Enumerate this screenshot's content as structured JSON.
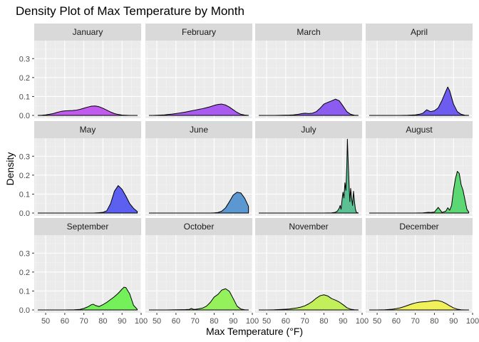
{
  "chart_data": {
    "type": "area",
    "title": "Density Plot of Max Temperature by Month",
    "xlabel": "Max Temperature (°F)",
    "ylabel": "Density",
    "xlim": [
      44,
      100
    ],
    "ylim": [
      -0.015,
      0.395
    ],
    "x_ticks": [
      50,
      60,
      70,
      80,
      90,
      100
    ],
    "y_ticks": [
      0.0,
      0.1,
      0.2,
      0.3
    ],
    "y_tick_labels": [
      "0.0",
      "0.1",
      "0.2",
      "0.3"
    ],
    "grid": true,
    "panels": [
      {
        "name": "January",
        "fill": "#C15BF0",
        "x": [
          46,
          48,
          50,
          52,
          54,
          56,
          58,
          60,
          62,
          64,
          66,
          68,
          70,
          72,
          74,
          76,
          78,
          80,
          82,
          84,
          86,
          88,
          90,
          92,
          94,
          96,
          98
        ],
        "y": [
          0.0,
          0.001,
          0.003,
          0.006,
          0.01,
          0.016,
          0.021,
          0.024,
          0.025,
          0.026,
          0.028,
          0.032,
          0.038,
          0.044,
          0.049,
          0.05,
          0.046,
          0.038,
          0.028,
          0.018,
          0.01,
          0.005,
          0.002,
          0.001,
          0.0,
          0.0,
          0.0
        ]
      },
      {
        "name": "February",
        "fill": "#A95BF0",
        "x": [
          46,
          48,
          50,
          52,
          54,
          56,
          58,
          60,
          62,
          64,
          66,
          68,
          70,
          72,
          74,
          76,
          78,
          80,
          82,
          84,
          86,
          88,
          90,
          92,
          94,
          96,
          98
        ],
        "y": [
          0.0,
          0.0,
          0.001,
          0.002,
          0.003,
          0.005,
          0.007,
          0.01,
          0.013,
          0.016,
          0.02,
          0.024,
          0.028,
          0.032,
          0.036,
          0.041,
          0.046,
          0.053,
          0.058,
          0.06,
          0.055,
          0.044,
          0.03,
          0.016,
          0.006,
          0.002,
          0.0
        ]
      },
      {
        "name": "March",
        "fill": "#8C5BF0",
        "x": [
          46,
          50,
          54,
          58,
          62,
          64,
          66,
          68,
          70,
          72,
          74,
          76,
          78,
          80,
          82,
          84,
          86,
          88,
          90,
          92,
          94,
          96,
          98
        ],
        "y": [
          0.0,
          0.0,
          0.0,
          0.001,
          0.002,
          0.003,
          0.005,
          0.009,
          0.012,
          0.01,
          0.012,
          0.02,
          0.038,
          0.06,
          0.069,
          0.077,
          0.086,
          0.078,
          0.05,
          0.02,
          0.006,
          0.001,
          0.0
        ]
      },
      {
        "name": "April",
        "fill": "#6E5BF0",
        "x": [
          46,
          50,
          54,
          58,
          62,
          66,
          70,
          72,
          74,
          76,
          78,
          80,
          82,
          84,
          86,
          87,
          88,
          90,
          92,
          94,
          96,
          98
        ],
        "y": [
          0.0,
          0.0,
          0.0,
          0.0,
          0.0,
          0.001,
          0.003,
          0.006,
          0.012,
          0.03,
          0.02,
          0.025,
          0.04,
          0.08,
          0.128,
          0.15,
          0.13,
          0.06,
          0.02,
          0.006,
          0.001,
          0.0
        ]
      },
      {
        "name": "May",
        "fill": "#5B60F0",
        "x": [
          46,
          50,
          55,
          60,
          65,
          70,
          75,
          78,
          80,
          82,
          84,
          86,
          88,
          90,
          92,
          94,
          96,
          98
        ],
        "y": [
          0.0,
          0.0,
          0.0,
          0.0,
          0.0,
          0.0,
          0.0,
          0.002,
          0.004,
          0.012,
          0.05,
          0.115,
          0.145,
          0.125,
          0.09,
          0.05,
          0.025,
          0.008
        ]
      },
      {
        "name": "June",
        "fill": "#5B97D0",
        "x": [
          46,
          50,
          55,
          60,
          65,
          70,
          75,
          78,
          80,
          82,
          84,
          86,
          88,
          90,
          92,
          94,
          96,
          98
        ],
        "y": [
          0.0,
          0.0,
          0.0,
          0.0,
          0.0,
          0.0,
          0.0,
          0.0,
          0.001,
          0.003,
          0.01,
          0.028,
          0.06,
          0.095,
          0.11,
          0.106,
          0.078,
          0.035
        ]
      },
      {
        "name": "July",
        "fill": "#5BC094",
        "x": [
          46,
          60,
          80,
          84,
          86,
          87,
          88,
          88.5,
          89,
          89.5,
          90,
          90.5,
          91,
          91.5,
          92,
          92.3,
          92.6,
          93,
          93.3,
          93.6,
          94,
          94.5,
          95,
          95.5,
          96,
          96.5,
          97,
          98
        ],
        "y": [
          0.0,
          0.0,
          0.0,
          0.001,
          0.004,
          0.01,
          0.025,
          0.04,
          0.02,
          0.07,
          0.11,
          0.08,
          0.16,
          0.12,
          0.25,
          0.39,
          0.3,
          0.2,
          0.12,
          0.06,
          0.13,
          0.08,
          0.04,
          0.115,
          0.06,
          0.02,
          0.004,
          0.0
        ]
      },
      {
        "name": "August",
        "fill": "#5BD874",
        "x": [
          46,
          60,
          70,
          74,
          76,
          77,
          78,
          80,
          82,
          84,
          86,
          87,
          88,
          89,
          90,
          91,
          92,
          93,
          94,
          95,
          96,
          97,
          98
        ],
        "y": [
          0.0,
          0.0,
          0.0,
          0.001,
          0.003,
          0.004,
          0.003,
          0.005,
          0.03,
          0.003,
          0.01,
          0.028,
          0.015,
          0.04,
          0.12,
          0.18,
          0.22,
          0.21,
          0.15,
          0.12,
          0.07,
          0.02,
          0.005
        ]
      },
      {
        "name": "September",
        "fill": "#74F05B",
        "x": [
          46,
          50,
          55,
          60,
          65,
          68,
          70,
          72,
          74,
          75,
          76,
          78,
          80,
          82,
          84,
          86,
          88,
          90,
          91,
          92,
          94,
          96,
          98
        ],
        "y": [
          0.0,
          0.0,
          0.0,
          0.0,
          0.001,
          0.003,
          0.008,
          0.016,
          0.028,
          0.03,
          0.024,
          0.018,
          0.028,
          0.04,
          0.055,
          0.07,
          0.088,
          0.11,
          0.12,
          0.118,
          0.085,
          0.025,
          0.003
        ]
      },
      {
        "name": "October",
        "fill": "#94F05B",
        "x": [
          46,
          50,
          55,
          60,
          65,
          67,
          68,
          69,
          70,
          72,
          74,
          76,
          78,
          80,
          82,
          84,
          86,
          88,
          90,
          92,
          94,
          96,
          98
        ],
        "y": [
          0.0,
          0.0,
          0.0,
          0.001,
          0.002,
          0.003,
          0.008,
          0.004,
          0.003,
          0.006,
          0.01,
          0.02,
          0.04,
          0.068,
          0.082,
          0.105,
          0.112,
          0.098,
          0.06,
          0.02,
          0.005,
          0.001,
          0.0
        ]
      },
      {
        "name": "November",
        "fill": "#C1F05B",
        "x": [
          46,
          50,
          54,
          58,
          60,
          62,
          64,
          66,
          68,
          70,
          72,
          74,
          76,
          78,
          80,
          82,
          84,
          86,
          88,
          90,
          92,
          94,
          96,
          98
        ],
        "y": [
          0.0,
          0.0,
          0.001,
          0.003,
          0.004,
          0.005,
          0.008,
          0.011,
          0.015,
          0.022,
          0.032,
          0.045,
          0.062,
          0.075,
          0.08,
          0.074,
          0.06,
          0.052,
          0.042,
          0.028,
          0.012,
          0.004,
          0.001,
          0.0
        ]
      },
      {
        "name": "December",
        "fill": "#F0F05B",
        "x": [
          46,
          50,
          54,
          58,
          60,
          62,
          64,
          66,
          68,
          70,
          72,
          74,
          76,
          78,
          80,
          82,
          84,
          86,
          88,
          90,
          92,
          94,
          96,
          98
        ],
        "y": [
          0.0,
          0.0,
          0.001,
          0.004,
          0.007,
          0.011,
          0.017,
          0.024,
          0.031,
          0.037,
          0.041,
          0.043,
          0.044,
          0.047,
          0.05,
          0.049,
          0.044,
          0.034,
          0.022,
          0.011,
          0.004,
          0.001,
          0.0,
          0.0
        ]
      }
    ]
  },
  "colors": {
    "panel_bg": "#EBEBEB",
    "grid_major": "#FFFFFF",
    "grid_minor": "#F4F4F4",
    "strip_bg": "#D9D9D9",
    "outline": "#000000"
  }
}
